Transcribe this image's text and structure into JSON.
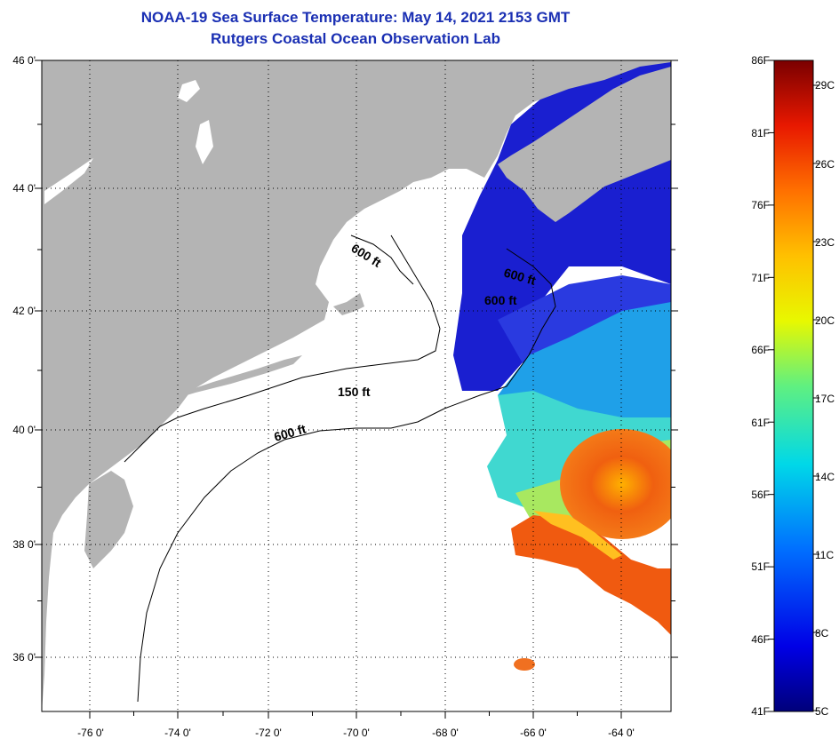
{
  "header": {
    "title": "NOAA-19 Sea Surface Temperature:  May 14, 2021 2153 GMT",
    "subtitle": "Rutgers Coastal Ocean Observation Lab"
  },
  "map": {
    "lat_labels": [
      "46 0'",
      "44 0'",
      "42 0'",
      "40 0'",
      "38 0'",
      "36 0'"
    ],
    "lon_labels": [
      "-76 0'",
      "-74 0'",
      "-72 0'",
      "-70 0'",
      "-68 0'",
      "-66 0'",
      "-64 0'"
    ],
    "contours": {
      "c600_gulf": "600 ft",
      "c600_east": "600 ft",
      "c600_georges": "600 ft",
      "c150": "150 ft",
      "c600_shelf": "600 ft"
    }
  },
  "colorbar": {
    "fahrenheit": [
      "86F",
      "81F",
      "76F",
      "71F",
      "66F",
      "61F",
      "56F",
      "51F",
      "46F",
      "41F"
    ],
    "celsius": [
      "29C",
      "26C",
      "23C",
      "20C",
      "17C",
      "14C",
      "11C",
      "8C",
      "5C"
    ]
  },
  "colors": {
    "title": "#1a2fb3",
    "land": "#b4b4b4",
    "cold": "#1a1fd0",
    "warm": "#f05010"
  }
}
